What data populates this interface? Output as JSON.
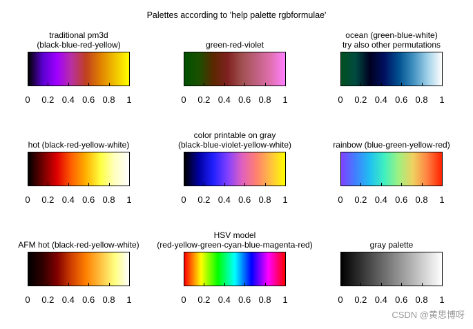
{
  "title": "Palettes according to 'help palette rgbformulae'",
  "watermark": "CSDN @黄思博呀",
  "chart_data": [
    {
      "type": "heatmap",
      "title_lines": [
        "traditional pm3d",
        "(black-blue-red-yellow)"
      ],
      "ticks": [
        "0",
        "0.2",
        "0.4",
        "0.6",
        "0.8",
        "1"
      ],
      "xlim": [
        0,
        1
      ],
      "colors": [
        "#000000",
        "#5a00d0",
        "#a000ff",
        "#b830a0",
        "#c04020",
        "#e08000",
        "#f0c000",
        "#ffff00"
      ]
    },
    {
      "type": "heatmap",
      "title_lines": [
        "green-red-violet"
      ],
      "ticks": [
        "0",
        "0.2",
        "0.4",
        "0.6",
        "0.8",
        "1"
      ],
      "xlim": [
        0,
        1
      ],
      "colors": [
        "#005000",
        "#1a5000",
        "#5a2800",
        "#802020",
        "#a05050",
        "#c06080",
        "#e070b0",
        "#ff80ff"
      ]
    },
    {
      "type": "heatmap",
      "title_lines": [
        "ocean (green-blue-white)",
        "try also other permutations"
      ],
      "ticks": [
        "0",
        "0.2",
        "0.4",
        "0.6",
        "0.8",
        "1"
      ],
      "xlim": [
        0,
        1
      ],
      "colors": [
        "#005020",
        "#004a40",
        "#000020",
        "#001060",
        "#005090",
        "#4090c0",
        "#a0d0e8",
        "#ffffff"
      ]
    },
    {
      "type": "heatmap",
      "title_lines": [
        "hot (black-red-yellow-white)"
      ],
      "ticks": [
        "0",
        "0.2",
        "0.4",
        "0.6",
        "0.8",
        "1"
      ],
      "xlim": [
        0,
        1
      ],
      "colors": [
        "#000000",
        "#700000",
        "#e00000",
        "#ff6000",
        "#ffb000",
        "#ffff40",
        "#ffffc0",
        "#ffffff"
      ]
    },
    {
      "type": "heatmap",
      "title_lines": [
        "color printable on gray",
        "(black-blue-violet-yellow-white)"
      ],
      "ticks": [
        "0",
        "0.2",
        "0.4",
        "0.6",
        "0.8",
        "1"
      ],
      "xlim": [
        0,
        1
      ],
      "colors": [
        "#000000",
        "#0000a0",
        "#2020ff",
        "#8040ff",
        "#e060c0",
        "#ff8070",
        "#ffc040",
        "#ffff00"
      ]
    },
    {
      "type": "heatmap",
      "title_lines": [
        "rainbow (blue-green-yellow-red)"
      ],
      "ticks": [
        "0",
        "0.2",
        "0.4",
        "0.6",
        "0.8",
        "1"
      ],
      "xlim": [
        0,
        1
      ],
      "colors": [
        "#8040ff",
        "#4080ff",
        "#20c0f0",
        "#40f0c0",
        "#a0f080",
        "#f0d060",
        "#ff8040",
        "#ff2000"
      ]
    },
    {
      "type": "heatmap",
      "title_lines": [
        "AFM hot (black-red-yellow-white)"
      ],
      "ticks": [
        "0",
        "0.2",
        "0.4",
        "0.6",
        "0.8",
        "1"
      ],
      "xlim": [
        0,
        1
      ],
      "colors": [
        "#000000",
        "#300000",
        "#800000",
        "#d04000",
        "#ff8000",
        "#ffc040",
        "#ffff80",
        "#ffffff"
      ]
    },
    {
      "type": "heatmap",
      "title_lines": [
        "HSV model",
        "(red-yellow-green-cyan-blue-magenta-red)"
      ],
      "ticks": [
        "0",
        "0.2",
        "0.4",
        "0.6",
        "0.8",
        "1"
      ],
      "xlim": [
        0,
        1
      ],
      "colors": [
        "#ff0000",
        "#ffff00",
        "#00ff00",
        "#00ffff",
        "#0000ff",
        "#ff00ff",
        "#ff0000"
      ]
    },
    {
      "type": "heatmap",
      "title_lines": [
        "gray palette"
      ],
      "ticks": [
        "0",
        "0.2",
        "0.4",
        "0.6",
        "0.8",
        "1"
      ],
      "xlim": [
        0,
        1
      ],
      "colors": [
        "#000000",
        "#ffffff"
      ]
    }
  ]
}
